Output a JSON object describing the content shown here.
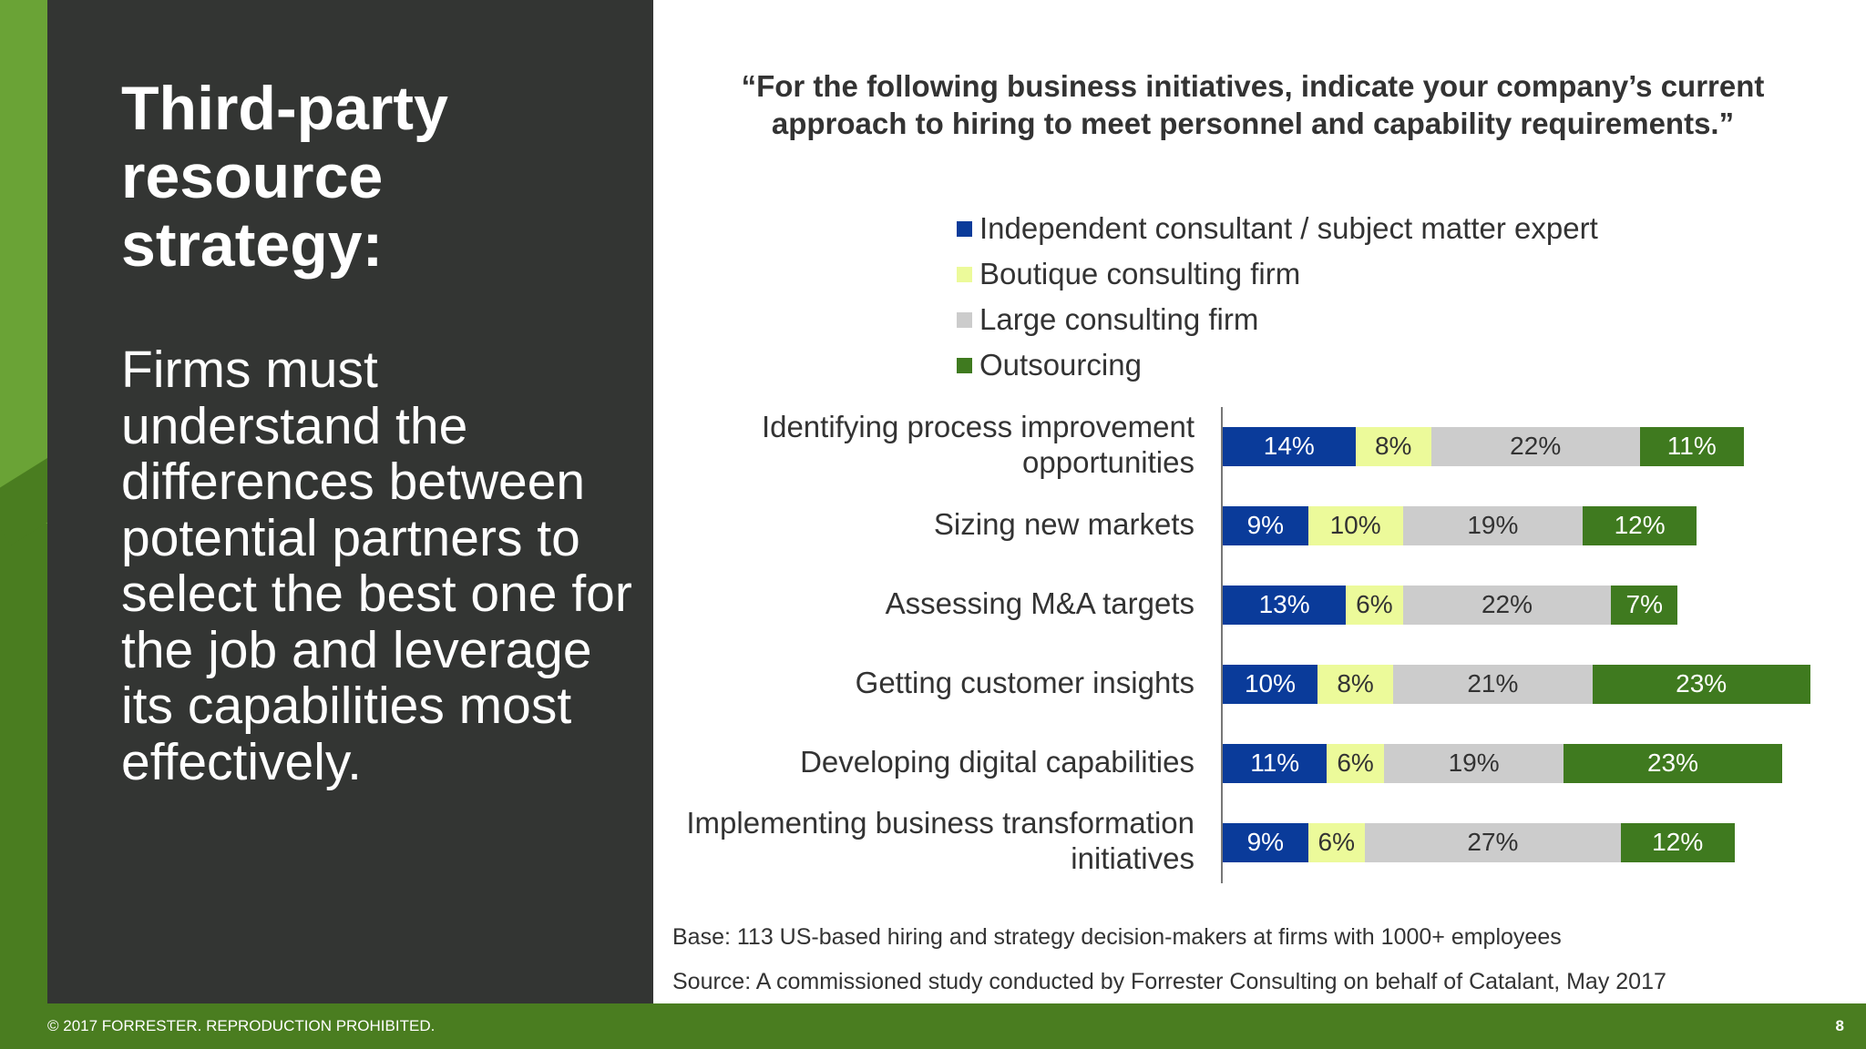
{
  "left_panel": {
    "title": "Third-party resource strategy:",
    "body": "Firms must understand the differences between potential partners to select the best one for the job and leverage its capabilities most effectively."
  },
  "footer": {
    "copyright": "© 2017 FORRESTER. REPRODUCTION PROHIBITED.",
    "page_number": "8"
  },
  "notes": {
    "base": "Base: 113 US-based hiring and strategy decision-makers at firms with 1000+ employees",
    "source": "Source: A commissioned study conducted by Forrester Consulting on behalf of Catalant, May 2017"
  },
  "chart_data": {
    "type": "bar",
    "orientation": "horizontal",
    "stacked": true,
    "title": "“For the following business initiatives, indicate your company’s current approach to hiring to meet personnel and capability requirements.”",
    "categories": [
      "Identifying process improvement opportunities",
      "Sizing new markets",
      "Assessing M&A targets",
      "Getting customer insights",
      "Developing digital capabilities",
      "Implementing business transformation initiatives"
    ],
    "category_lines": [
      [
        "Identifying process improvement",
        "opportunities"
      ],
      [
        "Sizing new markets"
      ],
      [
        "Assessing M&A targets"
      ],
      [
        "Getting customer insights"
      ],
      [
        "Developing digital capabilities"
      ],
      [
        "Implementing business transformation",
        "initiatives"
      ]
    ],
    "series": [
      {
        "name": "Independent consultant / subject matter expert",
        "color": "#0a3b9a",
        "text_color": "#ffffff",
        "values": [
          14,
          9,
          13,
          10,
          11,
          9
        ]
      },
      {
        "name": "Boutique consulting firm",
        "color": "#ecfa9a",
        "text_color": "#333333",
        "values": [
          8,
          10,
          6,
          8,
          6,
          6
        ]
      },
      {
        "name": "Large consulting firm",
        "color": "#cccccc",
        "text_color": "#333333",
        "values": [
          22,
          19,
          22,
          21,
          19,
          27
        ]
      },
      {
        "name": "Outsourcing",
        "color": "#3f7a1f",
        "text_color": "#ffffff",
        "values": [
          11,
          12,
          7,
          23,
          23,
          12
        ]
      }
    ],
    "value_suffix": "%",
    "legend_position": "top",
    "grid": false
  }
}
